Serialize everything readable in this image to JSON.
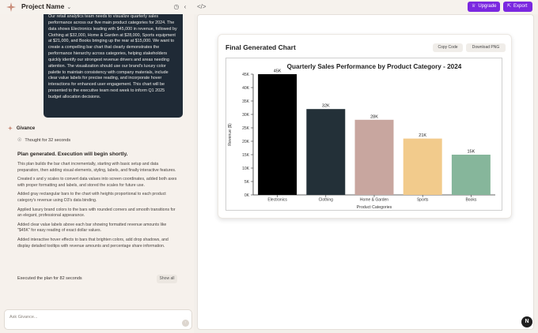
{
  "header": {
    "project_name": "Project Name",
    "upgrade_label": "Upgrade",
    "export_label": "Export"
  },
  "chat": {
    "user_prompt": "Our retail analytics team needs to visualize quarterly sales performance across our five main product categories for 2024. The data shows Electronics leading with $45,000 in revenue, followed by Clothing at $32,000, Home & Garden at $28,000, Sports equipment at $21,000, and Books bringing up the rear at $15,000. We want to create a compelling bar chart that clearly demonstrates the performance hierarchy across categories, helping stakeholders quickly identify our strongest revenue drivers and areas needing attention. The visualization should use our brand's luxury color palette to maintain consistency with company materials, include clear value labels for precise reading, and incorporate hover interactions for enhanced user engagement. This chart will be presented to the executive team next week to inform Q1 2025 budget allocation decisions.",
    "agent_name": "Givance",
    "thought": "Thought for 32 seconds",
    "plan_title": "Plan generated. Execution will begin shortly.",
    "steps": [
      "This plan builds the bar chart incrementally, starting with basic setup and data preparation, then adding visual elements, styling, labels, and finally interactive features.",
      "Created x and y scales to convert data values into screen coordinates, added both axes with proper formatting and labels, and stored the scales for future use.",
      "Added gray rectangular bars to the chart with heights proportional to each product category's revenue using D3's data binding.",
      "Applied luxury brand colors to the bars with rounded corners and smooth transitions for an elegant, professional appearance.",
      "Added clear value labels above each bar showing formatted revenue amounts like \"$45K\" for easy reading of exact dollar values.",
      "Added interactive hover effects to bars that brighten colors, add drop shadows, and display detailed tooltips with revenue amounts and percentage share information."
    ],
    "executed": "Executed the plan for 82 seconds",
    "show_all": "Show all",
    "input_placeholder": "Ask Givance..."
  },
  "preview": {
    "card_title": "Final Generated Chart",
    "copy_code": "Copy Code",
    "download_png": "Download PNG"
  },
  "chart_data": {
    "type": "bar",
    "title": "Quarterly Sales Performance by Product Category - 2024",
    "xlabel": "Product Categories",
    "ylabel": "Revenue ($)",
    "categories": [
      "Electronics",
      "Clothing",
      "Home & Garden",
      "Sports",
      "Books"
    ],
    "values": [
      45000,
      32000,
      28000,
      21000,
      15000
    ],
    "value_labels": [
      "45K",
      "32K",
      "28K",
      "21K",
      "15K"
    ],
    "colors": [
      "#000000",
      "#233038",
      "#c8a69f",
      "#f2cb8c",
      "#86b69b"
    ],
    "ylim": [
      0,
      45000
    ],
    "yticks": [
      0,
      5000,
      10000,
      15000,
      20000,
      25000,
      30000,
      35000,
      40000,
      45000
    ],
    "ytick_labels": [
      "0K",
      "5K",
      "10K",
      "15K",
      "20K",
      "25K",
      "30K",
      "35K",
      "40K",
      "45K"
    ],
    "grid": false
  }
}
